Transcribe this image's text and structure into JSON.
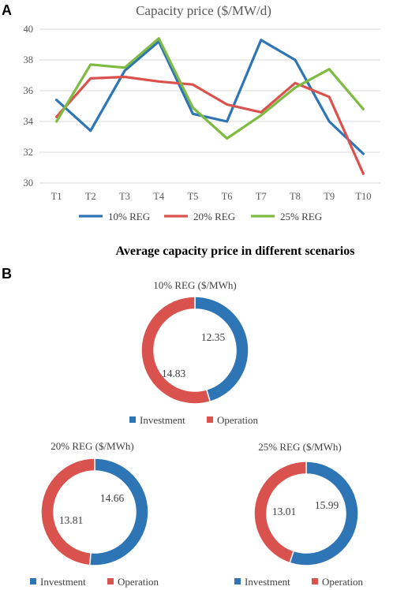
{
  "panel_a_label": "A",
  "panel_b_label": "B",
  "chart_data": [
    {
      "type": "line",
      "title": "Capacity price ($/MW/d)",
      "categories": [
        "T1",
        "T2",
        "T3",
        "T4",
        "T5",
        "T6",
        "T7",
        "T8",
        "T9",
        "T10"
      ],
      "ylim": [
        30,
        40
      ],
      "yticks": [
        30,
        32,
        34,
        36,
        38,
        40
      ],
      "grid": true,
      "legend_position": "bottom",
      "series": [
        {
          "name": "10% REG",
          "color": "#2E75B6",
          "values": [
            35.4,
            33.4,
            37.3,
            39.2,
            34.5,
            34.0,
            39.3,
            38.0,
            34.0,
            31.9
          ]
        },
        {
          "name": "20% REG",
          "color": "#D9524E",
          "values": [
            34.3,
            36.8,
            36.9,
            36.6,
            36.4,
            35.1,
            34.6,
            36.5,
            35.6,
            30.6
          ]
        },
        {
          "name": "25% REG",
          "color": "#7DBB42",
          "values": [
            34.0,
            37.7,
            37.5,
            39.4,
            34.9,
            32.9,
            34.4,
            36.2,
            37.4,
            34.8
          ]
        }
      ]
    },
    {
      "type": "pie",
      "title": "10% REG ($/MWh)",
      "slices": [
        {
          "label": "Investment",
          "value": 12.35,
          "color": "#2E75B6"
        },
        {
          "label": "Operation",
          "value": 14.83,
          "color": "#D9524E"
        }
      ]
    },
    {
      "type": "pie",
      "title": "20% REG ($/MWh)",
      "slices": [
        {
          "label": "Investment",
          "value": 14.66,
          "color": "#2E75B6"
        },
        {
          "label": "Operation",
          "value": 13.81,
          "color": "#D9524E"
        }
      ]
    },
    {
      "type": "pie",
      "title": "25% REG ($/MWh)",
      "slices": [
        {
          "label": "Investment",
          "value": 15.99,
          "color": "#2E75B6"
        },
        {
          "label": "Operation",
          "value": 13.01,
          "color": "#D9524E"
        }
      ]
    }
  ],
  "panel_b_title": "Average capacity price in different scenarios"
}
